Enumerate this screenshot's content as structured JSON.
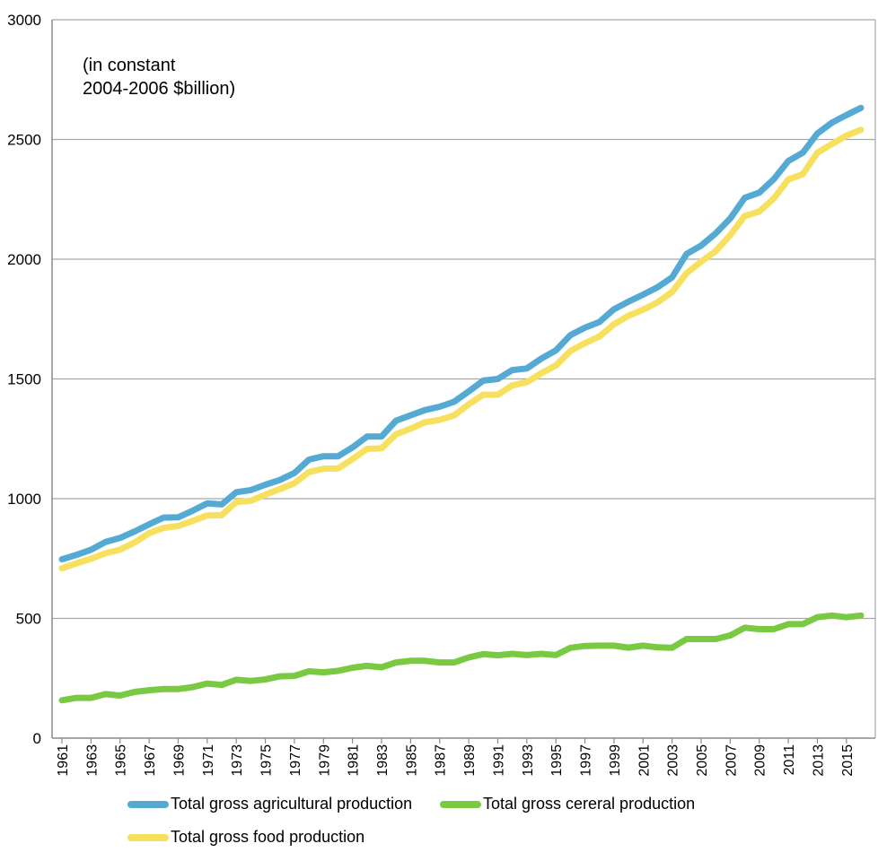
{
  "note": {
    "line1": "(in constant",
    "line2": "2004-2006 $billion)"
  },
  "chart_data": {
    "type": "line",
    "title": "",
    "xlabel": "",
    "ylabel": "",
    "ylim": [
      0,
      3000
    ],
    "yticks": [
      0,
      500,
      1000,
      1500,
      2000,
      2500,
      3000
    ],
    "grid": "horizontal",
    "legend_position": "bottom",
    "x": [
      1961,
      1962,
      1963,
      1964,
      1965,
      1966,
      1967,
      1968,
      1969,
      1970,
      1971,
      1972,
      1973,
      1974,
      1975,
      1976,
      1977,
      1978,
      1979,
      1980,
      1981,
      1982,
      1983,
      1984,
      1985,
      1986,
      1987,
      1988,
      1989,
      1990,
      1991,
      1992,
      1993,
      1994,
      1995,
      1996,
      1997,
      1998,
      1999,
      2000,
      2001,
      2002,
      2003,
      2004,
      2005,
      2006,
      2007,
      2008,
      2009,
      2010,
      2011,
      2012,
      2013,
      2014,
      2015,
      2016
    ],
    "xticks": [
      "1961",
      "1963",
      "1965",
      "1967",
      "1969",
      "1971",
      "1973",
      "1975",
      "1977",
      "1979",
      "1981",
      "1983",
      "1985",
      "1987",
      "1989",
      "1991",
      "1993",
      "1995",
      "1997",
      "1999",
      "2001",
      "2003",
      "2005",
      "2007",
      "2009",
      "2011",
      "2013",
      "2015"
    ],
    "series": [
      {
        "name": "Total gross agricultural production",
        "color": "#55aad4",
        "values": [
          747,
          765,
          787,
          819,
          836,
          863,
          893,
          921,
          922,
          950,
          980,
          976,
          1027,
          1036,
          1058,
          1078,
          1107,
          1163,
          1177,
          1177,
          1214,
          1259,
          1260,
          1326,
          1348,
          1370,
          1384,
          1405,
          1448,
          1493,
          1500,
          1537,
          1544,
          1585,
          1619,
          1683,
          1714,
          1738,
          1791,
          1823,
          1852,
          1883,
          1924,
          2022,
          2057,
          2108,
          2170,
          2256,
          2278,
          2334,
          2410,
          2445,
          2525,
          2570,
          2602,
          2632
        ]
      },
      {
        "name": "Total gross cereral production",
        "color": "#7ac943",
        "values": [
          158,
          168,
          168,
          184,
          178,
          193,
          200,
          205,
          205,
          213,
          228,
          222,
          244,
          239,
          245,
          258,
          260,
          279,
          275,
          281,
          294,
          302,
          296,
          316,
          323,
          323,
          316,
          316,
          337,
          351,
          346,
          352,
          347,
          352,
          347,
          377,
          385,
          386,
          386,
          378,
          386,
          379,
          377,
          414,
          414,
          414,
          429,
          461,
          455,
          455,
          476,
          476,
          505,
          512,
          505,
          512
        ]
      },
      {
        "name": "Total gross food production",
        "color": "#f6e05e",
        "values": [
          709,
          730,
          749,
          772,
          787,
          817,
          856,
          878,
          886,
          907,
          930,
          931,
          986,
          991,
          1017,
          1040,
          1064,
          1111,
          1125,
          1126,
          1165,
          1208,
          1210,
          1269,
          1292,
          1319,
          1329,
          1348,
          1394,
          1434,
          1434,
          1473,
          1486,
          1524,
          1556,
          1617,
          1649,
          1677,
          1728,
          1764,
          1789,
          1820,
          1863,
          1942,
          1990,
          2034,
          2100,
          2180,
          2199,
          2254,
          2333,
          2355,
          2445,
          2481,
          2516,
          2541
        ]
      }
    ]
  }
}
